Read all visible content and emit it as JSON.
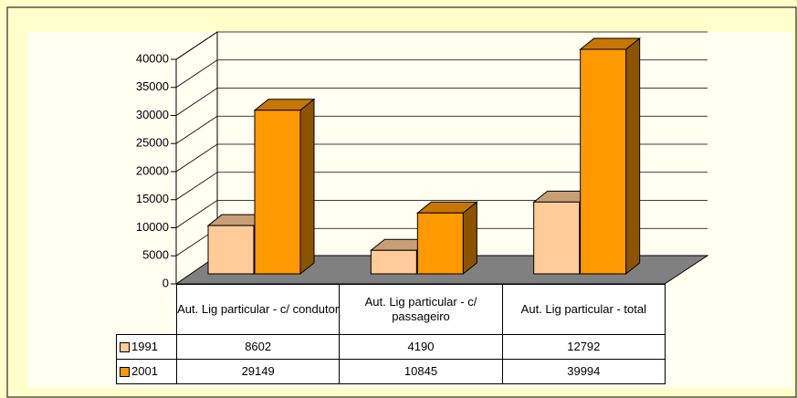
{
  "chart_data": {
    "type": "bar3d",
    "categories": [
      "Aut. Lig particular - c/ condutor",
      "Aut. Lig particular - c/ passageiro",
      "Aut. Lig particular - total"
    ],
    "series": [
      {
        "name": "1991",
        "color": "#ffcc99",
        "values": [
          8602,
          4190,
          12792
        ]
      },
      {
        "name": "2001",
        "color": "#ff9900",
        "values": [
          29149,
          10845,
          39994
        ]
      }
    ],
    "ylim": [
      0,
      40000
    ],
    "yticks": [
      0,
      5000,
      10000,
      15000,
      20000,
      25000,
      30000,
      35000,
      40000
    ],
    "grid": true
  }
}
